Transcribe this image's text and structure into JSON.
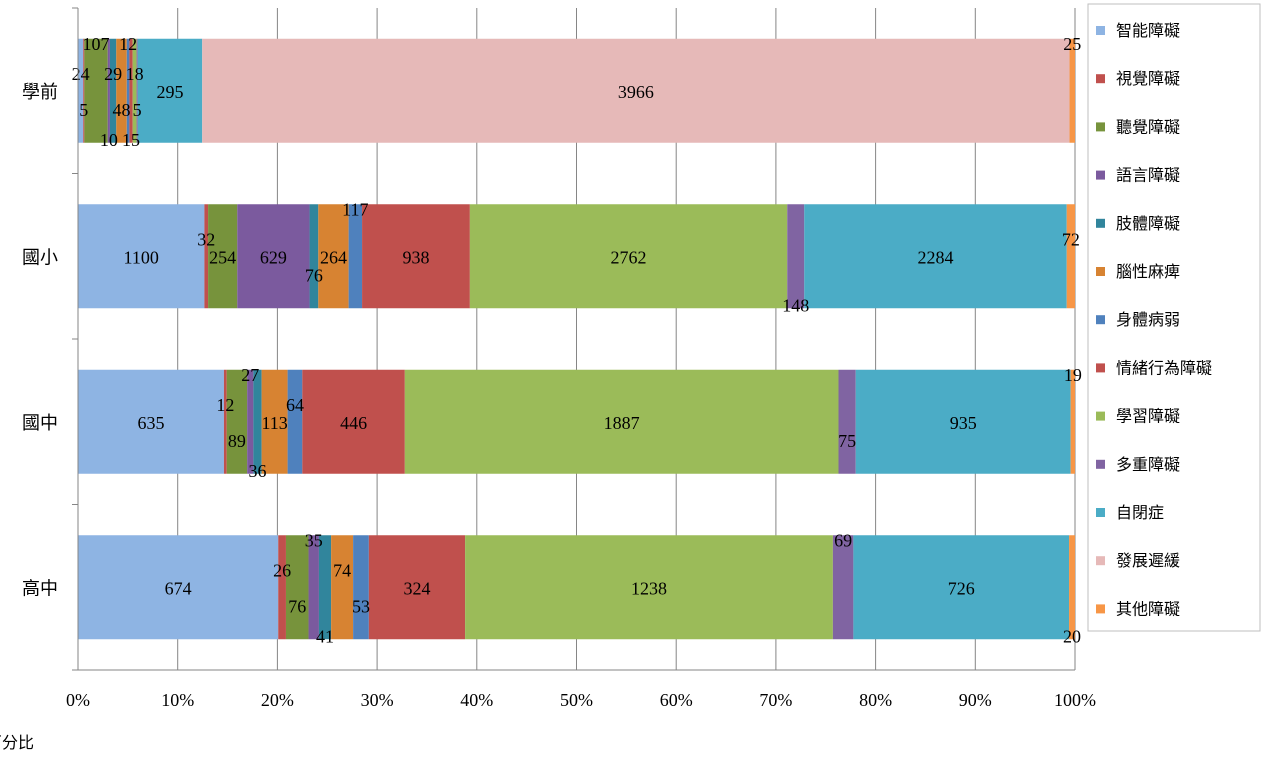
{
  "chart_data": {
    "type": "bar",
    "orientation": "horizontal",
    "stacked": "percent",
    "xlabel": "百分比",
    "xlim": [
      0,
      100
    ],
    "x_ticks": [
      "0%",
      "10%",
      "20%",
      "30%",
      "40%",
      "50%",
      "60%",
      "70%",
      "80%",
      "90%",
      "100%"
    ],
    "grid": true,
    "legend_position": "right",
    "categories": [
      "學前",
      "國小",
      "國中",
      "高中"
    ],
    "series": [
      {
        "name": "智能障礙",
        "color": "#8EB4E3",
        "values": [
          24,
          1100,
          635,
          674
        ]
      },
      {
        "name": "視覺障礙",
        "color": "#C0504D",
        "values": [
          5,
          32,
          12,
          26
        ]
      },
      {
        "name": "聽覺障礙",
        "color": "#77933C",
        "values": [
          107,
          254,
          89,
          76
        ]
      },
      {
        "name": "語言障礙",
        "color": "#7B5A9E",
        "values": [
          10,
          629,
          27,
          35
        ]
      },
      {
        "name": "肢體障礙",
        "color": "#31859C",
        "values": [
          29,
          76,
          36,
          41
        ]
      },
      {
        "name": "腦性麻痺",
        "color": "#D78332",
        "values": [
          48,
          264,
          113,
          74
        ]
      },
      {
        "name": "身體病弱",
        "color": "#4F81BD",
        "values": [
          12,
          117,
          64,
          53
        ]
      },
      {
        "name": "情緒行為障礙",
        "color": "#C0504D",
        "values": [
          15,
          938,
          446,
          324
        ]
      },
      {
        "name": "學習障礙",
        "color": "#9BBB59",
        "values": [
          18,
          2762,
          1887,
          1238
        ]
      },
      {
        "name": "多重障礙",
        "color": "#8064A2",
        "values": [
          5,
          148,
          75,
          69
        ]
      },
      {
        "name": "自閉症",
        "color": "#4BACC6",
        "values": [
          295,
          2284,
          935,
          726
        ]
      },
      {
        "name": "發展遲緩",
        "color": "#E6B9B8",
        "values": [
          3966,
          0,
          0,
          0
        ]
      },
      {
        "name": "其他障礙",
        "color": "#F79646",
        "values": [
          25,
          72,
          19,
          20
        ]
      }
    ],
    "label_colors": {
      "grid": "#868686",
      "axis": "#868686",
      "legend_border": "#BFBFBF",
      "text": "#000000"
    }
  }
}
